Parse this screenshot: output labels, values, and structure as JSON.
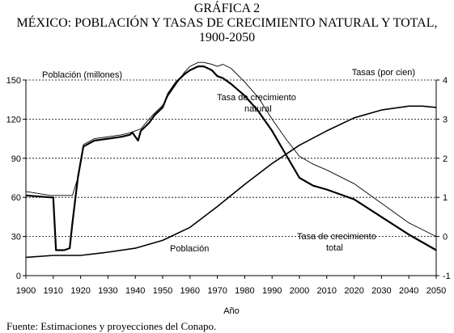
{
  "header": {
    "title_line1": "GRÁFICA 2",
    "title_line2": "MÉXICO: POBLACIÓN Y TASAS DE CRECIMIENTO NATURAL Y TOTAL,",
    "title_line3": "1900-2050"
  },
  "footer": {
    "source": "Fuente: Estimaciones y proyecciones del Conapo."
  },
  "chart_data": {
    "type": "line",
    "xlabel": "Año",
    "ylabel_left": "Población (millones)",
    "ylabel_right": "Tasas (por cien)",
    "xlim": [
      1900,
      2050
    ],
    "ylim_left": [
      0,
      150
    ],
    "ylim_right": [
      -1,
      4
    ],
    "xticks": [
      1900,
      1910,
      1920,
      1930,
      1940,
      1950,
      1960,
      1970,
      1980,
      1990,
      2000,
      2010,
      2020,
      2030,
      2040,
      2050
    ],
    "yticks_left": [
      0,
      30,
      60,
      90,
      120,
      150
    ],
    "yticks_right": [
      -1,
      0,
      1,
      2,
      3,
      4
    ],
    "grid": "horizontal",
    "annotations": {
      "natural": [
        "Tasa de crecimiento",
        "natural"
      ],
      "total": [
        "Tasa de crecimiento",
        "total"
      ],
      "poblacion": "Población"
    },
    "series": [
      {
        "name": "Población",
        "axis": "left",
        "x": [
          1900,
          1910,
          1920,
          1930,
          1940,
          1950,
          1960,
          1970,
          1980,
          1990,
          2000,
          2010,
          2020,
          2030,
          2040,
          2045,
          2050
        ],
        "y": [
          14,
          15.5,
          15.5,
          18,
          21,
          27,
          37,
          53,
          70,
          86,
          100,
          111,
          121,
          127,
          130,
          130,
          129
        ]
      },
      {
        "name": "Tasa de crecimiento natural",
        "axis": "right",
        "x": [
          1900,
          1909,
          1912,
          1915,
          1917,
          1919,
          1921,
          1925,
          1930,
          1935,
          1938,
          1940,
          1942,
          1945,
          1947,
          1950,
          1952,
          1955,
          1958,
          1960,
          1963,
          1965,
          1968,
          1970,
          1972,
          1975,
          1980,
          1985,
          1990,
          1995,
          2000,
          2005,
          2010,
          2020,
          2030,
          2040,
          2050
        ],
        "y": [
          1.15,
          1.05,
          1.05,
          1.05,
          1.05,
          1.5,
          2.35,
          2.5,
          2.55,
          2.6,
          2.65,
          2.7,
          2.75,
          3.0,
          3.15,
          3.35,
          3.6,
          3.9,
          4.2,
          4.35,
          4.45,
          4.45,
          4.4,
          4.35,
          4.4,
          4.3,
          3.95,
          3.55,
          3.0,
          2.5,
          2.05,
          1.85,
          1.7,
          1.35,
          0.85,
          0.35,
          0.0
        ]
      },
      {
        "name": "Tasa de crecimiento total",
        "axis": "right",
        "x": [
          1900,
          1909,
          1910,
          1911,
          1914,
          1916,
          1917,
          1919,
          1921,
          1925,
          1930,
          1935,
          1938,
          1939,
          1941,
          1942,
          1945,
          1947,
          1950,
          1952,
          1955,
          1958,
          1960,
          1963,
          1965,
          1968,
          1970,
          1972,
          1975,
          1980,
          1985,
          1990,
          1995,
          2000,
          2005,
          2010,
          2020,
          2030,
          2040,
          2050
        ],
        "y": [
          1.05,
          1.0,
          1.0,
          -0.35,
          -0.35,
          -0.3,
          0.35,
          1.5,
          2.3,
          2.45,
          2.5,
          2.55,
          2.6,
          2.65,
          2.45,
          2.7,
          2.9,
          3.1,
          3.3,
          3.65,
          3.95,
          4.15,
          4.25,
          4.35,
          4.35,
          4.25,
          4.1,
          4.05,
          3.9,
          3.6,
          3.2,
          2.7,
          2.1,
          1.5,
          1.3,
          1.2,
          0.95,
          0.5,
          0.05,
          -0.35
        ]
      }
    ]
  }
}
